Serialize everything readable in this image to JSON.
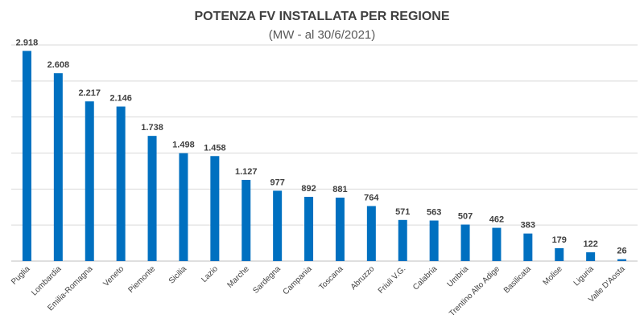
{
  "chart_data": {
    "type": "bar",
    "title": "POTENZA FV INSTALLATA PER REGIONE",
    "subtitle": "(MW - al 30/6/2021)",
    "xlabel": "",
    "ylabel": "",
    "ylim": [
      0,
      3000
    ],
    "grid": true,
    "categories": [
      "Puglia",
      "Lombardia",
      "Emilia-Romagna",
      "Veneto",
      "Piemonte",
      "Sicilia",
      "Lazio",
      "Marche",
      "Sardegna",
      "Campania",
      "Toscana",
      "Abruzzo",
      "Friuli V.G.",
      "Calabria",
      "Umbria",
      "Trentino Alto Adige",
      "Basilicata",
      "Molise",
      "Liguria",
      "Valle D'Aosta"
    ],
    "values": [
      2918,
      2608,
      2217,
      2146,
      1738,
      1498,
      1458,
      1127,
      977,
      892,
      881,
      764,
      571,
      563,
      507,
      462,
      383,
      179,
      122,
      26
    ],
    "value_labels": [
      "2.918",
      "2.608",
      "2.217",
      "2.146",
      "1.738",
      "1.498",
      "1.458",
      "1.127",
      "977",
      "892",
      "881",
      "764",
      "571",
      "563",
      "507",
      "462",
      "383",
      "179",
      "122",
      "26"
    ],
    "colors": {
      "bar": "#0070c0"
    }
  }
}
